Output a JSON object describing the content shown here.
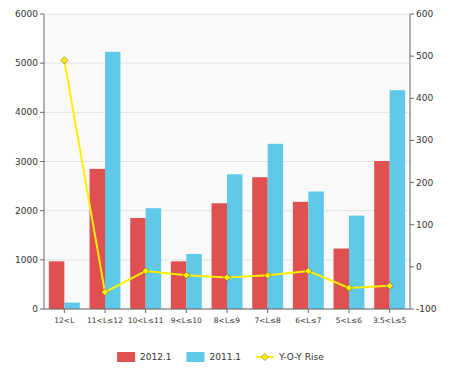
{
  "chart_data": {
    "type": "bar",
    "categories": [
      "12<L",
      "11<L≤12",
      "10<L≤11",
      "9<L≤10",
      "8<L≤9",
      "7<L≤8",
      "6<L≤7",
      "5<L≤6",
      "3.5<L≤5"
    ],
    "series": [
      {
        "name": "2012.1",
        "color": "#e05050",
        "values": [
          970,
          2850,
          1850,
          970,
          2150,
          2680,
          2180,
          1230,
          3010
        ]
      },
      {
        "name": "2011.1",
        "color": "#60c8e8",
        "values": [
          130,
          5230,
          2050,
          1120,
          2740,
          3360,
          2390,
          1900,
          4450
        ]
      },
      {
        "name": "Y-O-Y Rise",
        "type": "line",
        "color": "#ffee00",
        "marker": "diamond",
        "axis": "y2",
        "values": [
          490,
          -60,
          -10,
          -20,
          -25,
          -20,
          -10,
          -50,
          -45
        ]
      }
    ],
    "ylim": [
      0,
      6000
    ],
    "yticks": [
      0,
      1000,
      2000,
      3000,
      4000,
      5000,
      6000
    ],
    "y2lim": [
      -100,
      600
    ],
    "y2ticks": [
      -100,
      0,
      100,
      200,
      300,
      400,
      500,
      600
    ],
    "grid": true,
    "legend": "bottom"
  }
}
